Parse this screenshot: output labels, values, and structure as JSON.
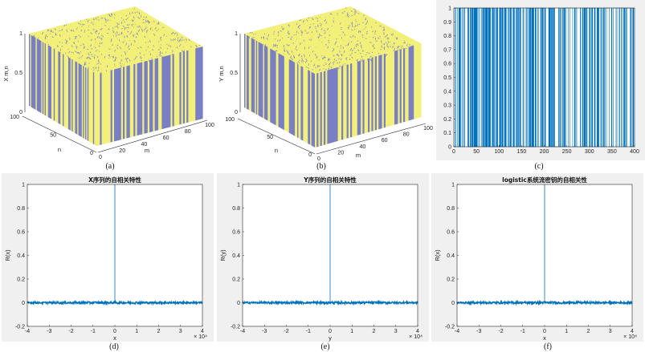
{
  "colors": {
    "line": "#0072bd",
    "surface_yellow": "#f3f07a",
    "surface_purple": "#7a7fc4",
    "panel_bg": "#f0f0f0",
    "axis": "#262626"
  },
  "chart_data": [
    {
      "type": "surface",
      "caption": "(a)",
      "zlabel": "X m,n",
      "xlabel": "m",
      "ylabel": "n",
      "xticks": [
        "0",
        "20",
        "40",
        "60",
        "80",
        "100"
      ],
      "yticks": [
        "0",
        "50",
        "100"
      ],
      "zticks": [
        "0",
        "0.5",
        "1"
      ],
      "values": "binary 0/1 random surface",
      "m_range": [
        0,
        100
      ],
      "n_range": [
        0,
        100
      ],
      "z_range": [
        0,
        1
      ]
    },
    {
      "type": "surface",
      "caption": "(b)",
      "zlabel": "Y m,n",
      "xlabel": "m",
      "ylabel": "n",
      "xticks": [
        "0",
        "20",
        "40",
        "60",
        "80",
        "100"
      ],
      "yticks": [
        "0",
        "50",
        "100"
      ],
      "zticks": [
        "0",
        "0.5",
        "1"
      ],
      "values": "binary 0/1 random surface",
      "m_range": [
        0,
        100
      ],
      "n_range": [
        0,
        100
      ],
      "z_range": [
        0,
        1
      ]
    },
    {
      "type": "line",
      "caption": "(c)",
      "xlim": [
        0,
        400
      ],
      "ylim": [
        0,
        1
      ],
      "xticks": [
        "0",
        "50",
        "100",
        "150",
        "200",
        "250",
        "300",
        "350",
        "400"
      ],
      "yticks": [
        "0",
        "0.1",
        "0.2",
        "0.3",
        "0.4",
        "0.5",
        "0.6",
        "0.7",
        "0.8",
        "0.9",
        "1"
      ],
      "values": "binary 0/1 switching sequence"
    },
    {
      "type": "line",
      "caption": "(d)",
      "title": "X序列的自相关特性",
      "xlabel": "x",
      "ylabel": "R(x)",
      "xlim": [
        -4,
        4
      ],
      "ylim": [
        -0.2,
        1
      ],
      "xticks": [
        "-4",
        "-3",
        "-2",
        "-1",
        "0",
        "1",
        "2",
        "3",
        "4"
      ],
      "yticks": [
        "-0.2",
        "0",
        "0.2",
        "0.4",
        "0.6",
        "0.8",
        "1"
      ],
      "x_exponent": "× 10⁴",
      "peak": {
        "x": 0,
        "y": 1
      },
      "noise_level": 0.01
    },
    {
      "type": "line",
      "caption": "(e)",
      "title": "Y序列的自相关特性",
      "xlabel": "y",
      "ylabel": "R(y)",
      "xlim": [
        -4,
        4
      ],
      "ylim": [
        -0.2,
        1
      ],
      "xticks": [
        "-4",
        "-3",
        "-2",
        "-1",
        "0",
        "1",
        "2",
        "3",
        "4"
      ],
      "yticks": [
        "-0.2",
        "0",
        "0.2",
        "0.4",
        "0.6",
        "0.8",
        "1"
      ],
      "x_exponent": "× 10⁴",
      "peak": {
        "x": 0,
        "y": 1
      },
      "noise_level": 0.01
    },
    {
      "type": "line",
      "caption": "(f)",
      "title": "logistic系统流密钥的自相关性",
      "xlabel": "x",
      "ylabel": "R(x)",
      "xlim": [
        -4,
        4
      ],
      "ylim": [
        -0.2,
        1
      ],
      "xticks": [
        "-4",
        "-3",
        "-2",
        "-1",
        "0",
        "1",
        "2",
        "3",
        "4"
      ],
      "yticks": [
        "-0.2",
        "0",
        "0.2",
        "0.4",
        "0.6",
        "0.8",
        "1"
      ],
      "x_exponent": "× 10⁴",
      "peak": {
        "x": 0,
        "y": 1
      },
      "noise_level": 0.01
    }
  ]
}
